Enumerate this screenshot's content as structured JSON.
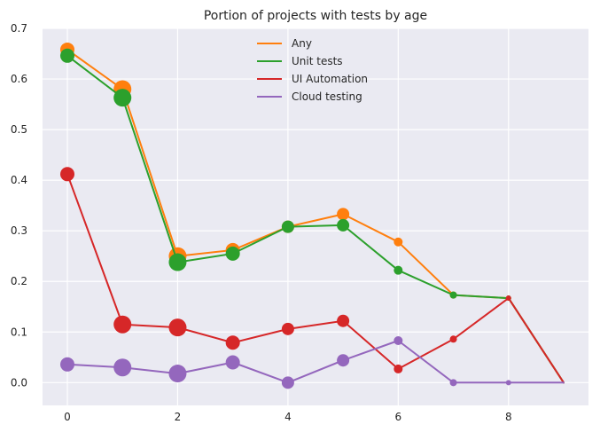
{
  "chart_data": {
    "type": "line",
    "title": "Portion of projects with tests by age",
    "xlabel": "",
    "ylabel": "",
    "xlim": [
      -0.45,
      9.45
    ],
    "ylim": [
      -0.045,
      0.7
    ],
    "x_ticks": [
      0,
      2,
      4,
      6,
      8
    ],
    "y_ticks": [
      0.0,
      0.1,
      0.2,
      0.3,
      0.4,
      0.5,
      0.6,
      0.7
    ],
    "y_tick_labels": [
      "0.0",
      "0.1",
      "0.2",
      "0.3",
      "0.4",
      "0.5",
      "0.6",
      "0.7"
    ],
    "grid": true,
    "legend_position": "top-center",
    "background": "#EAEAF2",
    "x": [
      0,
      1,
      2,
      3,
      4,
      5,
      6,
      7,
      8,
      9
    ],
    "marker_sizes": [
      8,
      10,
      10,
      8,
      7,
      7,
      5,
      4,
      3,
      1
    ],
    "series": [
      {
        "name": "Any",
        "color": "#ff7f0e",
        "values": [
          0.658,
          0.58,
          0.25,
          0.262,
          0.308,
          0.333,
          0.278,
          0.173,
          0.167,
          0.0
        ]
      },
      {
        "name": "Unit tests",
        "color": "#2ca02c",
        "values": [
          0.646,
          0.563,
          0.238,
          0.255,
          0.308,
          0.311,
          0.222,
          0.173,
          0.167,
          0.0
        ]
      },
      {
        "name": "UI Automation",
        "color": "#d62728",
        "values": [
          0.412,
          0.115,
          0.109,
          0.079,
          0.106,
          0.122,
          0.027,
          0.086,
          0.167,
          0.0
        ]
      },
      {
        "name": "Cloud testing",
        "color": "#9467bd",
        "values": [
          0.036,
          0.03,
          0.018,
          0.04,
          0.0,
          0.044,
          0.083,
          0.0,
          0.0,
          0.0
        ]
      }
    ]
  }
}
